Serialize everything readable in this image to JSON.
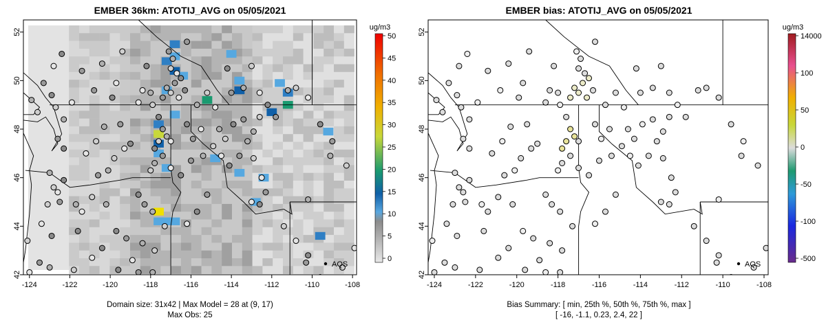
{
  "panels": [
    {
      "title": "EMBER 36km: ATOTIJ_AVG on 05/05/2021",
      "x_ticks": [
        "-124",
        "-122",
        "-120",
        "-118",
        "-116",
        "-114",
        "-112",
        "-110",
        "-108"
      ],
      "y_ticks": [
        "42",
        "44",
        "46",
        "48",
        "50",
        "52"
      ],
      "colorbar_unit": "ug/m3",
      "colorbar_ticks": [
        "0",
        "5",
        "10",
        "15",
        "20",
        "25",
        "30",
        "35",
        "40",
        "45",
        "50"
      ],
      "legend_label": "AQS",
      "caption_line1": "Domain size: 31x42 | Max Model = 28 at (9, 17)",
      "caption_line2": "Max Obs: 25"
    },
    {
      "title": "EMBER bias: ATOTIJ_AVG on 05/05/2021",
      "x_ticks": [
        "-124",
        "-122",
        "-120",
        "-118",
        "-116",
        "-114",
        "-112",
        "-110",
        "-108"
      ],
      "y_ticks": [
        "42",
        "44",
        "46",
        "48",
        "50",
        "52"
      ],
      "colorbar_unit": "ug/m3",
      "colorbar_ticks": [
        "-500",
        "-100",
        "-50",
        "0",
        "50",
        "100",
        "14000"
      ],
      "legend_label": "AQS",
      "caption_line1": "Bias Summary: [ min, 25th %, 50th %, 75th %, max ]",
      "caption_line2": "[ -16,  -1.1,  0.23,  2.4,  22 ]"
    }
  ],
  "chart_data": [
    {
      "type": "heatmap",
      "title": "EMBER 36km: ATOTIJ_AVG on 05/05/2021",
      "xlim": [
        -124.3,
        -107.8
      ],
      "ylim": [
        42.0,
        52.5
      ],
      "colorbar": {
        "unit": "ug/m3",
        "min": 0,
        "max": 50,
        "colors": [
          "#e8e8e8",
          "#9a9a9a",
          "#56a8e0",
          "#1060a8",
          "#1a9a70",
          "#c8d83a",
          "#f0b000",
          "#f07000",
          "#f00000"
        ]
      },
      "summary": {
        "domain_size": "31x42",
        "max_model": 28,
        "max_model_cell": [
          9,
          17
        ],
        "max_obs": 25
      },
      "highlight_cells": [
        {
          "lon": -116.8,
          "lat": 51.5,
          "value": 13
        },
        {
          "lon": -116.8,
          "lat": 51.0,
          "value": 12
        },
        {
          "lon": -117.2,
          "lat": 50.8,
          "value": 14
        },
        {
          "lon": -116.8,
          "lat": 50.4,
          "value": 16
        },
        {
          "lon": -116.4,
          "lat": 50.2,
          "value": 11
        },
        {
          "lon": -117.2,
          "lat": 49.6,
          "value": 12
        },
        {
          "lon": -114.0,
          "lat": 51.1,
          "value": 11
        },
        {
          "lon": -113.6,
          "lat": 50.0,
          "value": 10
        },
        {
          "lon": -113.6,
          "lat": 49.6,
          "value": 17
        },
        {
          "lon": -111.6,
          "lat": 49.9,
          "value": 10
        },
        {
          "lon": -111.2,
          "lat": 49.5,
          "value": 13
        },
        {
          "lon": -115.2,
          "lat": 49.2,
          "value": 20
        },
        {
          "lon": -111.2,
          "lat": 49.0,
          "value": 22
        },
        {
          "lon": -112.0,
          "lat": 48.7,
          "value": 15
        },
        {
          "lon": -116.8,
          "lat": 48.6,
          "value": 11
        },
        {
          "lon": -117.6,
          "lat": 48.2,
          "value": 14
        },
        {
          "lon": -117.6,
          "lat": 47.8,
          "value": 25
        },
        {
          "lon": -117.6,
          "lat": 47.4,
          "value": 15
        },
        {
          "lon": -117.6,
          "lat": 47.0,
          "value": 11
        },
        {
          "lon": -117.2,
          "lat": 46.4,
          "value": 12
        },
        {
          "lon": -113.6,
          "lat": 46.2,
          "value": 10
        },
        {
          "lon": -112.4,
          "lat": 46.0,
          "value": 10
        },
        {
          "lon": -117.6,
          "lat": 44.6,
          "value": 28
        },
        {
          "lon": -117.6,
          "lat": 44.2,
          "value": 12
        },
        {
          "lon": -117.2,
          "lat": 44.2,
          "value": 12
        },
        {
          "lon": -116.8,
          "lat": 44.2,
          "value": 11
        },
        {
          "lon": -112.8,
          "lat": 45.0,
          "value": 10
        },
        {
          "lon": -109.6,
          "lat": 43.6,
          "value": 14
        },
        {
          "lon": -109.2,
          "lat": 47.9,
          "value": 10
        },
        {
          "lon": -114.8,
          "lat": 46.8,
          "value": 10
        }
      ]
    },
    {
      "type": "scatter",
      "title": "EMBER bias: ATOTIJ_AVG on 05/05/2021",
      "xlim": [
        -124.3,
        -107.8
      ],
      "ylim": [
        42.0,
        52.5
      ],
      "colorbar": {
        "unit": "ug/m3",
        "ticks": [
          -500,
          -100,
          -50,
          0,
          50,
          100,
          14000
        ],
        "colors": [
          "#6a2c8c",
          "#1a28e0",
          "#2e9ad8",
          "#1e9a70",
          "#d8d8d8",
          "#c8d83a",
          "#f0b000",
          "#e84f8f",
          "#a01c20"
        ]
      },
      "summary": {
        "min": -16,
        "p25": -1.1,
        "p50": 0.23,
        "p75": 2.4,
        "max": 22
      }
    }
  ],
  "stations": [
    [
      -117.1,
      51.2
    ],
    [
      -116.9,
      50.9
    ],
    [
      -117.0,
      50.5
    ],
    [
      -116.7,
      50.3
    ],
    [
      -116.5,
      50.1
    ],
    [
      -116.8,
      49.9
    ],
    [
      -117.2,
      49.7
    ],
    [
      -117.0,
      49.5
    ],
    [
      -116.6,
      49.3
    ],
    [
      -116.3,
      49.6
    ],
    [
      -117.4,
      49.3
    ],
    [
      -118.0,
      49.5
    ],
    [
      -117.9,
      49.0
    ],
    [
      -118.4,
      49.6
    ],
    [
      -118.2,
      50.6
    ],
    [
      -116.2,
      51.6
    ],
    [
      -115.7,
      49.0
    ],
    [
      -115.2,
      49.5
    ],
    [
      -114.8,
      48.9
    ],
    [
      -114.2,
      50.5
    ],
    [
      -114.0,
      49.5
    ],
    [
      -113.4,
      49.7
    ],
    [
      -113.0,
      50.6
    ],
    [
      -112.6,
      49.5
    ],
    [
      -112.2,
      49.0
    ],
    [
      -111.8,
      48.5
    ],
    [
      -111.2,
      49.6
    ],
    [
      -110.8,
      49.7
    ],
    [
      -110.2,
      49.3
    ],
    [
      -109.6,
      48.2
    ],
    [
      -109.0,
      47.5
    ],
    [
      -109.1,
      46.9
    ],
    [
      -108.3,
      46.5
    ],
    [
      -118.6,
      49.1
    ],
    [
      -117.6,
      48.5
    ],
    [
      -117.4,
      48.0
    ],
    [
      -117.2,
      47.7
    ],
    [
      -117.6,
      47.5
    ],
    [
      -117.0,
      47.5
    ],
    [
      -117.8,
      47.2
    ],
    [
      -117.4,
      46.9
    ],
    [
      -117.8,
      46.6
    ],
    [
      -118.0,
      46.3
    ],
    [
      -117.0,
      46.4
    ],
    [
      -116.5,
      46.1
    ],
    [
      -116.0,
      46.7
    ],
    [
      -115.4,
      46.9
    ],
    [
      -114.9,
      47.3
    ],
    [
      -114.5,
      46.9
    ],
    [
      -114.1,
      46.5
    ],
    [
      -113.6,
      46.9
    ],
    [
      -113.2,
      47.5
    ],
    [
      -112.9,
      46.8
    ],
    [
      -112.5,
      46.0
    ],
    [
      -113.9,
      48.2
    ],
    [
      -113.4,
      48.4
    ],
    [
      -112.9,
      47.9
    ],
    [
      -112.6,
      48.5
    ],
    [
      -115.5,
      48.0
    ],
    [
      -116.2,
      48.2
    ],
    [
      -115.9,
      47.6
    ],
    [
      -114.6,
      48.0
    ],
    [
      -114.3,
      47.6
    ],
    [
      -113.0,
      45.0
    ],
    [
      -112.6,
      44.9
    ],
    [
      -112.3,
      45.4
    ],
    [
      -110.2,
      45.1
    ],
    [
      -111.4,
      44.0
    ],
    [
      -110.8,
      43.4
    ],
    [
      -110.2,
      42.8
    ],
    [
      -110.3,
      42.5
    ],
    [
      -109.6,
      41.9
    ],
    [
      -108.5,
      42.3
    ],
    [
      -107.9,
      43.1
    ],
    [
      -118.6,
      45.3
    ],
    [
      -118.3,
      44.9
    ],
    [
      -117.9,
      44.6
    ],
    [
      -117.3,
      44.0
    ],
    [
      -116.2,
      44.1
    ],
    [
      -115.7,
      44.6
    ],
    [
      -115.2,
      45.3
    ],
    [
      -120.2,
      44.9
    ],
    [
      -120.9,
      45.2
    ],
    [
      -121.4,
      44.6
    ],
    [
      -119.7,
      43.8
    ],
    [
      -119.2,
      43.5
    ],
    [
      -118.4,
      43.3
    ],
    [
      -117.8,
      43.0
    ],
    [
      -118.9,
      42.6
    ],
    [
      -119.6,
      42.2
    ],
    [
      -118.6,
      42.1
    ],
    [
      -117.9,
      42.1
    ],
    [
      -121.8,
      42.2
    ],
    [
      -120.9,
      42.7
    ],
    [
      -120.4,
      43.1
    ],
    [
      -120.6,
      46.1
    ],
    [
      -120.1,
      46.3
    ],
    [
      -119.8,
      46.8
    ],
    [
      -119.3,
      47.2
    ],
    [
      -119.0,
      47.4
    ],
    [
      -119.5,
      48.2
    ],
    [
      -120.3,
      48.1
    ],
    [
      -120.7,
      47.5
    ],
    [
      -121.2,
      47.0
    ],
    [
      -122.3,
      47.2
    ],
    [
      -122.6,
      47.6
    ],
    [
      -122.3,
      48.4
    ],
    [
      -122.7,
      48.9
    ],
    [
      -121.9,
      49.1
    ],
    [
      -122.9,
      49.4
    ],
    [
      -123.3,
      49.9
    ],
    [
      -123.9,
      49.2
    ],
    [
      -123.6,
      48.7
    ],
    [
      -122.8,
      50.6
    ],
    [
      -122.4,
      51.1
    ],
    [
      -121.4,
      50.4
    ],
    [
      -120.4,
      50.7
    ],
    [
      -119.4,
      51.2
    ],
    [
      -119.7,
      49.9
    ],
    [
      -119.9,
      49.3
    ],
    [
      -120.8,
      49.6
    ],
    [
      -123.0,
      46.2
    ],
    [
      -122.8,
      45.6
    ],
    [
      -122.6,
      45.4
    ],
    [
      -122.3,
      45.9
    ],
    [
      -122.5,
      45.0
    ],
    [
      -121.7,
      44.9
    ],
    [
      -123.1,
      44.9
    ],
    [
      -123.4,
      44.1
    ],
    [
      -122.9,
      43.6
    ],
    [
      -123.5,
      42.5
    ],
    [
      -123.0,
      42.3
    ],
    [
      -124.1,
      43.4
    ],
    [
      -124.0,
      42.1
    ],
    [
      -121.6,
      43.8
    ]
  ]
}
